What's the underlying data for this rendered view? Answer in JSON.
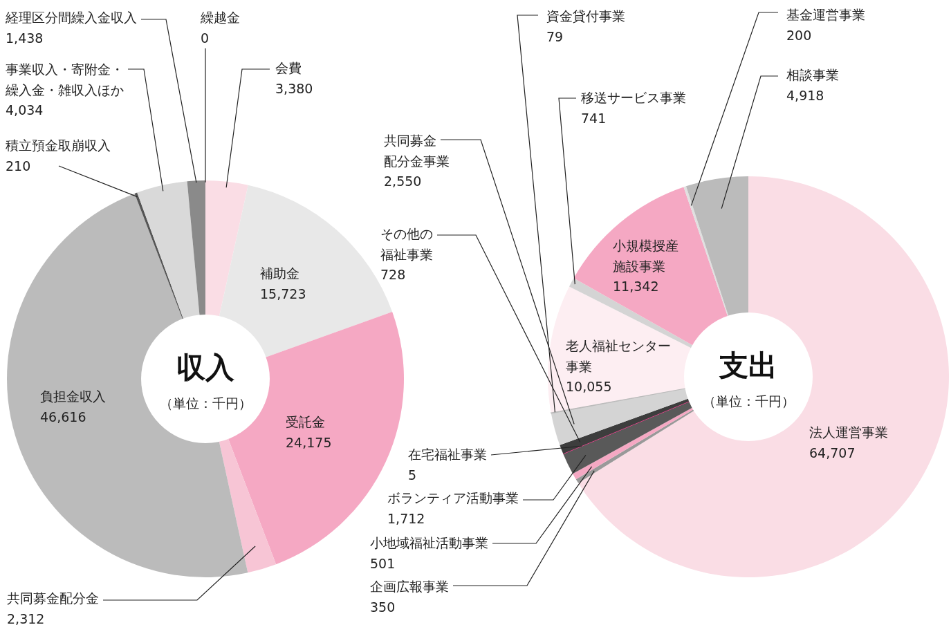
{
  "chart_data": [
    {
      "type": "donut",
      "title": "収入",
      "subtitle": "（単位：千円）",
      "categories": [
        "繰越金",
        "会費",
        "補助金",
        "受託金",
        "共同募金配分金",
        "負担金収入",
        "積立預金取崩収入",
        "事業収入・寄附金・繰入金・雑収入ほか",
        "経理区分間繰入金収入"
      ],
      "values": [
        0,
        3380,
        15723,
        24175,
        2312,
        46616,
        210,
        4034,
        1438
      ],
      "colors": [
        "#888888",
        "#fadde5",
        "#e8e8e8",
        "#f5a8c3",
        "#f7c5d5",
        "#bbbbbb",
        "#555555",
        "#d9d9d9",
        "#8a8a8a"
      ],
      "value_labels": [
        "0",
        "3,380",
        "15,723",
        "24,175",
        "2,312",
        "46,616",
        "210",
        "4,034",
        "1,438"
      ]
    },
    {
      "type": "donut",
      "title": "支出",
      "subtitle": "（単位：千円）",
      "categories": [
        "法人運営事業",
        "企画広報事業",
        "小地域福祉活動事業",
        "ボランティア活動事業",
        "在宅福祉事業",
        "その他の福祉事業",
        "共同募金配分金事業",
        "資金貸付事業",
        "老人福祉センター事業",
        "移送サービス事業",
        "小規模授産施設事業",
        "基金運営事業",
        "相談事業"
      ],
      "values": [
        64707,
        350,
        501,
        1712,
        5,
        728,
        2550,
        79,
        10055,
        741,
        11342,
        200,
        4918
      ],
      "colors": [
        "#fadde5",
        "#999999",
        "#f5a8c3",
        "#595959",
        "#e8408a",
        "#3d3d3d",
        "#d4d4d4",
        "#bbbbbb",
        "#fdeef2",
        "#d4d4d4",
        "#f5a8c3",
        "#e0e0e0",
        "#bbbbbb"
      ],
      "value_labels": [
        "64,707",
        "350",
        "501",
        "1,712",
        "5",
        "728",
        "2,550",
        "79",
        "10,055",
        "741",
        "11,342",
        "200",
        "4,918"
      ]
    }
  ]
}
